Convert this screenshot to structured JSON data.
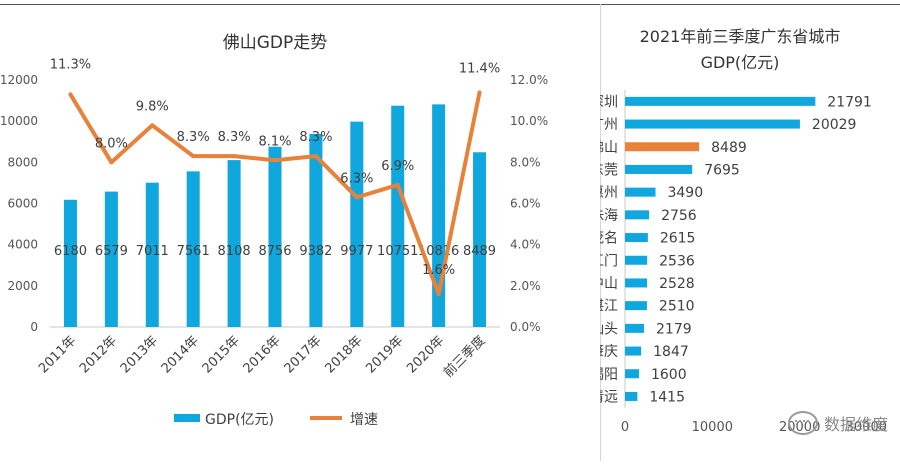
{
  "chart_data": [
    {
      "type": "bar+line",
      "title": "佛山GDP走势",
      "categories": [
        "2011年",
        "2012年",
        "2013年",
        "2014年",
        "2015年",
        "2016年",
        "2017年",
        "2018年",
        "2019年",
        "2020年",
        "前三季度"
      ],
      "series": [
        {
          "name": "GDP(亿元)",
          "type": "bar",
          "axis": "left",
          "color": "#0fa7dd",
          "values": [
            6180,
            6579,
            7011,
            7561,
            8108,
            8756,
            9382,
            9977,
            10751,
            10816,
            8489
          ]
        },
        {
          "name": "增速",
          "type": "line",
          "axis": "right",
          "color": "#e8823a",
          "values": [
            11.3,
            8.0,
            9.8,
            8.3,
            8.3,
            8.1,
            8.3,
            6.3,
            6.9,
            1.6,
            11.4
          ],
          "labels": [
            "11.3%",
            "8.0%",
            "9.8%",
            "8.3%",
            "8.3%",
            "8.1%",
            "8.3%",
            "6.3%",
            "6.9%",
            "1.6%",
            "11.4%"
          ]
        }
      ],
      "y_left": {
        "ylim": [
          0,
          12000
        ],
        "ticks": [
          "0",
          "2000",
          "4000",
          "6000",
          "8000",
          "10000",
          "12000"
        ]
      },
      "y_right": {
        "ylim": [
          0,
          12
        ],
        "ticks": [
          "0.0%",
          "2.0%",
          "4.0%",
          "6.0%",
          "8.0%",
          "10.0%",
          "12.0%"
        ]
      },
      "legend": [
        {
          "label": "GDP(亿元)",
          "color": "#0fa7dd"
        },
        {
          "label": "增速",
          "color": "#e8823a"
        }
      ],
      "legend_position": "bottom"
    },
    {
      "type": "horizontal-bar",
      "title_lines": [
        "2021年前三季度广东省城市",
        "GDP(亿元)"
      ],
      "categories": [
        "深圳",
        "广州",
        "佛山",
        "东莞",
        "惠州",
        "珠海",
        "茂名",
        "江门",
        "中山",
        "湛江",
        "汕头",
        "肇庆",
        "揭阳",
        "清远"
      ],
      "values": [
        21791,
        20029,
        8489,
        7695,
        3490,
        2756,
        2615,
        2536,
        2528,
        2510,
        2179,
        1847,
        1600,
        1415
      ],
      "highlight": "佛山",
      "colors": {
        "default": "#0fa7dd",
        "highlight": "#e8823a"
      },
      "xlim": [
        0,
        30000
      ],
      "x_ticks": [
        "0",
        "10000",
        "20000",
        "30000"
      ]
    }
  ],
  "watermark": {
    "text": "数据维度",
    "icon": "wechat-icon"
  }
}
